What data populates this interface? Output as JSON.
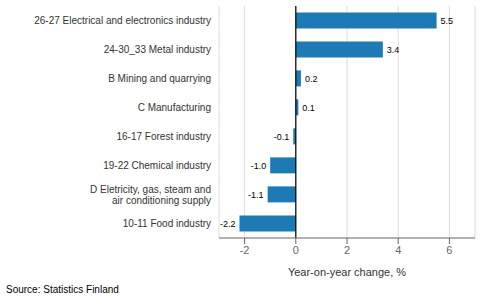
{
  "chart_data": {
    "type": "bar",
    "orientation": "horizontal",
    "categories": [
      "10-11 Food industry",
      "D Eletricity, gas, steam and\nair conditioning supply",
      "19-22 Chemical industry",
      "16-17 Forest industry",
      "C Manufacturing",
      "B Mining and quarrying",
      "24-30_33 Metal industry",
      "26-27 Electrical and electronics industry"
    ],
    "values": [
      -2.2,
      -1.1,
      -1.0,
      -0.1,
      0.1,
      0.2,
      3.4,
      5.5
    ],
    "value_labels": [
      "-2.2",
      "-1.1",
      "-1.0",
      "-0.1",
      "0.1",
      "0.2",
      "3.4",
      "5.5"
    ],
    "data_labels": true,
    "color": "#1d7ab5",
    "xlim": [
      -3.0,
      7.0
    ],
    "xticks": [
      -2,
      0,
      2,
      4,
      6
    ],
    "xlabel": "Year-on-year change, %",
    "grid": true,
    "annotations": [
      "Source: Statistics Finland"
    ]
  }
}
